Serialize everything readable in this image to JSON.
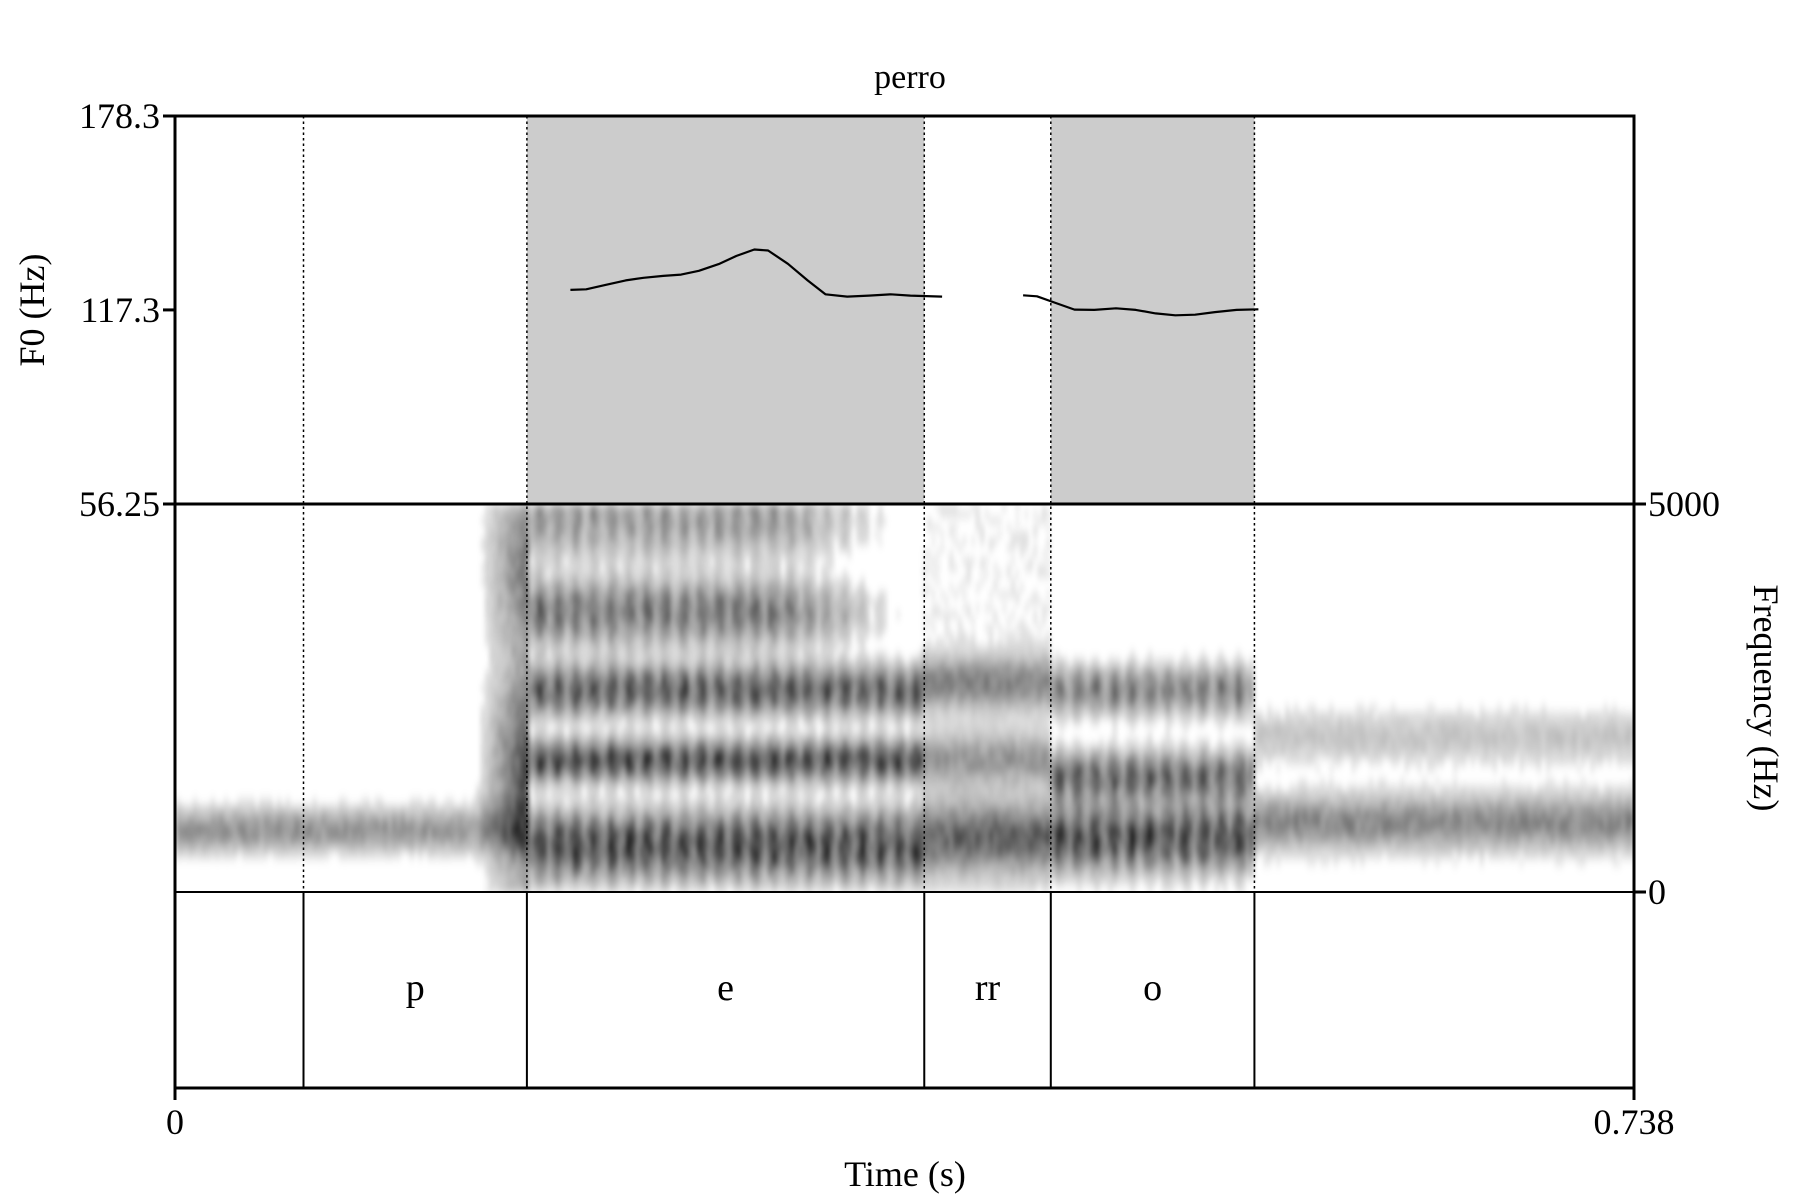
{
  "chart_data": {
    "type": "line",
    "title": "perro",
    "xlabel": "Time (s)",
    "ylabel": "F0 (Hz)",
    "ylabel_right": "Frequency (Hz)",
    "xlim": [
      0,
      0.738
    ],
    "x_ticks": [
      "0",
      "0.738"
    ],
    "f0_axis": {
      "ylim": [
        56.25,
        178.3
      ],
      "ticks": [
        "178.3",
        "117.3",
        "56.25"
      ],
      "tick_values": [
        178.3,
        117.3,
        56.25
      ]
    },
    "spectrogram_axis": {
      "ylim": [
        0,
        5000
      ],
      "ticks": [
        "5000",
        "0"
      ],
      "tick_values": [
        5000,
        0
      ]
    },
    "boundaries": [
      0.065,
      0.178,
      0.379,
      0.443,
      0.546
    ],
    "segments": [
      {
        "label": "",
        "start": 0.0,
        "end": 0.065
      },
      {
        "label": "p",
        "start": 0.065,
        "end": 0.178
      },
      {
        "label": "e",
        "start": 0.178,
        "end": 0.379
      },
      {
        "label": "rr",
        "start": 0.379,
        "end": 0.443
      },
      {
        "label": "o",
        "start": 0.443,
        "end": 0.546
      },
      {
        "label": "",
        "start": 0.546,
        "end": 0.738
      }
    ],
    "highlighted_segments": [
      {
        "start": 0.178,
        "end": 0.379
      },
      {
        "start": 0.443,
        "end": 0.546
      }
    ],
    "series": [
      {
        "x": [
          0.2,
          0.208,
          0.218,
          0.228,
          0.237,
          0.247,
          0.256,
          0.265,
          0.275,
          0.284,
          0.293,
          0.3,
          0.31,
          0.32,
          0.329,
          0.34,
          0.351,
          0.362,
          0.372,
          0.388
        ],
        "y": [
          123.6,
          123.8,
          125.2,
          126.6,
          127.4,
          128.0,
          128.4,
          129.6,
          131.7,
          134.3,
          136.3,
          136.0,
          131.8,
          126.6,
          122.2,
          121.5,
          121.8,
          122.2,
          121.8,
          121.5
        ]
      },
      {
        "x": [
          0.429,
          0.436,
          0.445,
          0.455,
          0.465,
          0.476,
          0.486,
          0.496,
          0.506,
          0.516,
          0.526,
          0.537,
          0.548
        ],
        "y": [
          121.9,
          121.6,
          119.6,
          117.4,
          117.3,
          117.8,
          117.3,
          116.2,
          115.6,
          115.8,
          116.6,
          117.3,
          117.5
        ]
      }
    ],
    "colors": {
      "highlight": "#cccccc",
      "line": "#000000",
      "spectrogram": "#000000"
    }
  }
}
